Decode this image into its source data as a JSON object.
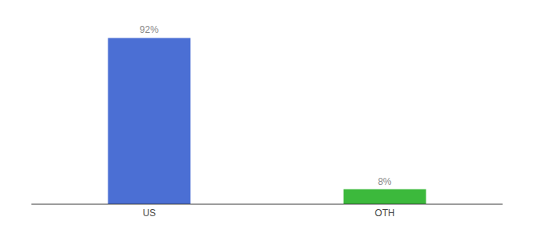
{
  "chart_data": {
    "type": "bar",
    "categories": [
      "US",
      "OTH"
    ],
    "values": [
      92,
      8
    ],
    "value_labels": [
      "92%",
      "8%"
    ],
    "colors": [
      "#4b6fd4",
      "#3cb93c"
    ],
    "ylim": [
      0,
      100
    ],
    "data_labels": true,
    "tick_labels": "x"
  }
}
